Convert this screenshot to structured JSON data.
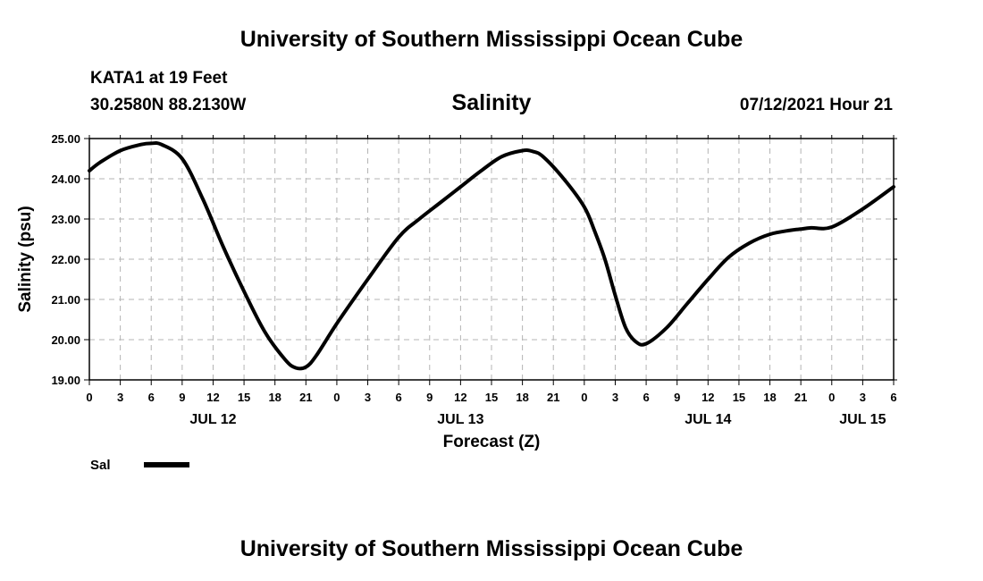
{
  "header": {
    "title": "University of Southern Mississippi Ocean Cube",
    "station": "KATA1 at 19 Feet",
    "coordinates": "30.2580N  88.2130W",
    "datetime": "07/12/2021 Hour 21"
  },
  "footer": {
    "title": "University of Southern Mississippi Ocean Cube"
  },
  "chart_data": {
    "type": "line",
    "title": "Salinity",
    "xlabel": "Forecast (Z)",
    "ylabel": "Salinity (psu)",
    "xlim": [
      0,
      78
    ],
    "ylim": [
      19.0,
      25.0
    ],
    "grid": true,
    "x_ticks": [
      0,
      3,
      6,
      9,
      12,
      15,
      18,
      21,
      24,
      27,
      30,
      33,
      36,
      39,
      42,
      45,
      48,
      51,
      54,
      57,
      60,
      63,
      66,
      69,
      72,
      75,
      78
    ],
    "x_tick_labels": [
      "0",
      "3",
      "6",
      "9",
      "12",
      "15",
      "18",
      "21",
      "0",
      "3",
      "6",
      "9",
      "12",
      "15",
      "18",
      "21",
      "0",
      "3",
      "6",
      "9",
      "12",
      "15",
      "18",
      "21",
      "0",
      "3",
      "6"
    ],
    "y_ticks": [
      19,
      20,
      21,
      22,
      23,
      24,
      25
    ],
    "y_tick_labels": [
      "19.00",
      "20.00",
      "21.00",
      "22.00",
      "23.00",
      "24.00",
      "25.00"
    ],
    "date_labels": [
      {
        "x": 12,
        "label": "JUL 12"
      },
      {
        "x": 36,
        "label": "JUL 13"
      },
      {
        "x": 60,
        "label": "JUL 14"
      },
      {
        "x": 75,
        "label": "JUL 15"
      }
    ],
    "legend": {
      "position": "bottom-left",
      "entries": [
        "Sal"
      ]
    },
    "series": [
      {
        "name": "Sal",
        "x": [
          0,
          1,
          3,
          5,
          6,
          7,
          9,
          11,
          13,
          15,
          17,
          19,
          20,
          21,
          22,
          24,
          27,
          30,
          32,
          34,
          36,
          38,
          40,
          42,
          43,
          44,
          46,
          48,
          49,
          50,
          51,
          52,
          53,
          54,
          56,
          58,
          60,
          62,
          64,
          66,
          68,
          69,
          70,
          72,
          75,
          78
        ],
        "y": [
          24.2,
          24.4,
          24.7,
          24.85,
          24.88,
          24.85,
          24.5,
          23.5,
          22.3,
          21.2,
          20.2,
          19.5,
          19.3,
          19.32,
          19.6,
          20.4,
          21.5,
          22.55,
          23.0,
          23.4,
          23.8,
          24.2,
          24.55,
          24.7,
          24.68,
          24.55,
          24.0,
          23.3,
          22.7,
          22.0,
          21.1,
          20.3,
          19.95,
          19.9,
          20.3,
          20.9,
          21.5,
          22.05,
          22.4,
          22.62,
          22.72,
          22.75,
          22.78,
          22.8,
          23.25,
          23.8
        ]
      }
    ]
  }
}
